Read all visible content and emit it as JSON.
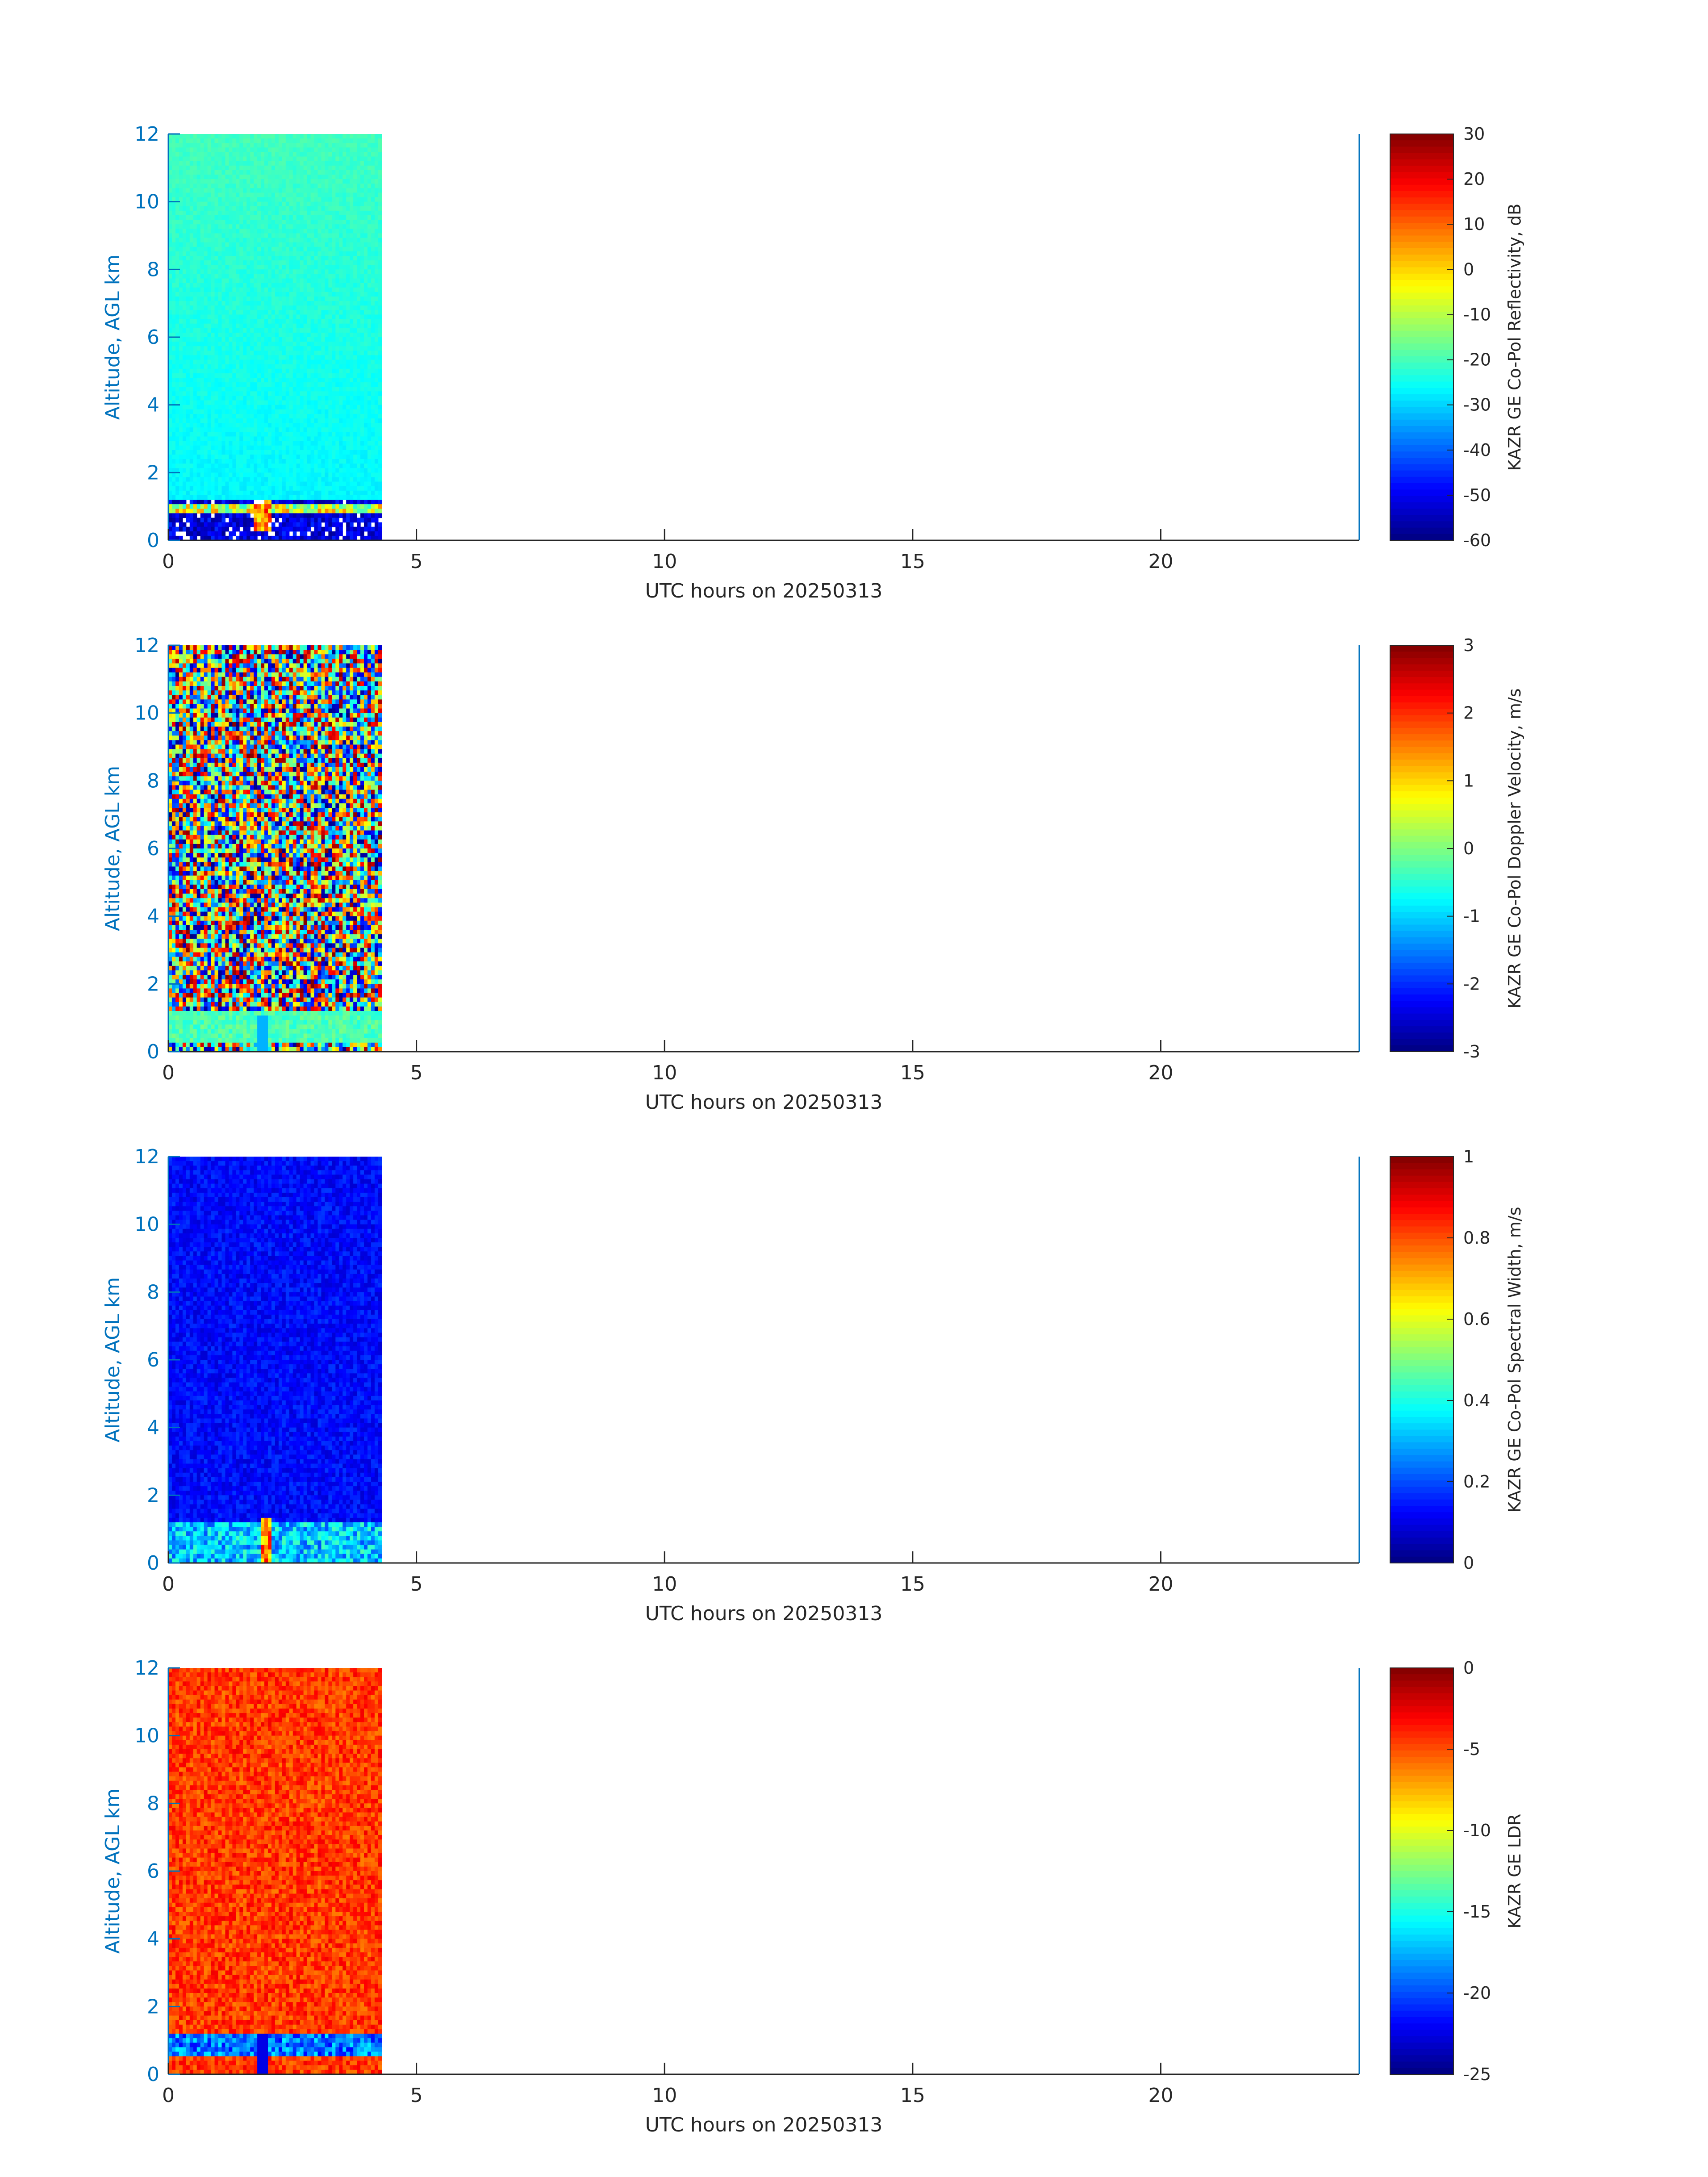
{
  "figure": {
    "xlabel": "UTC hours on 20250313",
    "ylabel": "Altitude, AGL km",
    "x_ticks": [
      "0",
      "5",
      "10",
      "15",
      "20"
    ],
    "y_ticks": [
      "0",
      "2",
      "4",
      "6",
      "8",
      "10",
      "12"
    ],
    "colors": {
      "axis_left": "#0072BD",
      "axis_bottom": "#262626",
      "colormap": "jet"
    }
  },
  "chart_data": [
    {
      "type": "heatmap",
      "name": "reflectivity",
      "xlabel": "UTC hours on 20250313",
      "ylabel": "Altitude, AGL km",
      "xlim": [
        0,
        24
      ],
      "ylim": [
        0,
        12
      ],
      "data_extent_hours": [
        0,
        4.3
      ],
      "colorbar": {
        "label": "KAZR GE Co-Pol Reflectivity, dB",
        "range": [
          -60,
          30
        ],
        "ticks": [
          "30",
          "20",
          "10",
          "0",
          "-10",
          "-20",
          "-30",
          "-40",
          "-50",
          "-60"
        ]
      },
      "background_level": -28,
      "feature": "low cloud / precipitation layer below ~1.2 km with gaps near 0-0.8 km"
    },
    {
      "type": "heatmap",
      "name": "doppler",
      "xlabel": "UTC hours on 20250313",
      "ylabel": "Altitude, AGL km",
      "xlim": [
        0,
        24
      ],
      "ylim": [
        0,
        12
      ],
      "data_extent_hours": [
        0,
        4.3
      ],
      "colorbar": {
        "label": "KAZR GE Co-Pol Doppler Velocity, m/s",
        "range": [
          -3,
          3
        ],
        "ticks": [
          "3",
          "2",
          "1",
          "0",
          "-1",
          "-2",
          "-3"
        ]
      },
      "background_level": "noise",
      "feature": "near-zero velocity layer below ~1.1 km"
    },
    {
      "type": "heatmap",
      "name": "width",
      "xlabel": "UTC hours on 20250313",
      "ylabel": "Altitude, AGL km",
      "xlim": [
        0,
        24
      ],
      "ylim": [
        0,
        12
      ],
      "data_extent_hours": [
        0,
        4.3
      ],
      "colorbar": {
        "label": "KAZR GE Co-Pol Spectral Width, m/s",
        "range": [
          0,
          1
        ],
        "ticks": [
          "1",
          "0.8",
          "0.6",
          "0.4",
          "0.2",
          "0"
        ]
      },
      "background_level": 0.1,
      "feature": "slightly enhanced width below ~1.1 km"
    },
    {
      "type": "heatmap",
      "name": "ldr",
      "xlabel": "UTC hours on 20250313",
      "ylabel": "Altitude, AGL km",
      "xlim": [
        0,
        24
      ],
      "ylim": [
        0,
        12
      ],
      "data_extent_hours": [
        0,
        4.3
      ],
      "colorbar": {
        "label": "KAZR GE LDR",
        "range": [
          -25,
          0
        ],
        "ticks": [
          "0",
          "-5",
          "-10",
          "-15",
          "-20",
          "-25"
        ]
      },
      "background_level": -3,
      "feature": "low LDR layer below ~1.1 km"
    }
  ]
}
